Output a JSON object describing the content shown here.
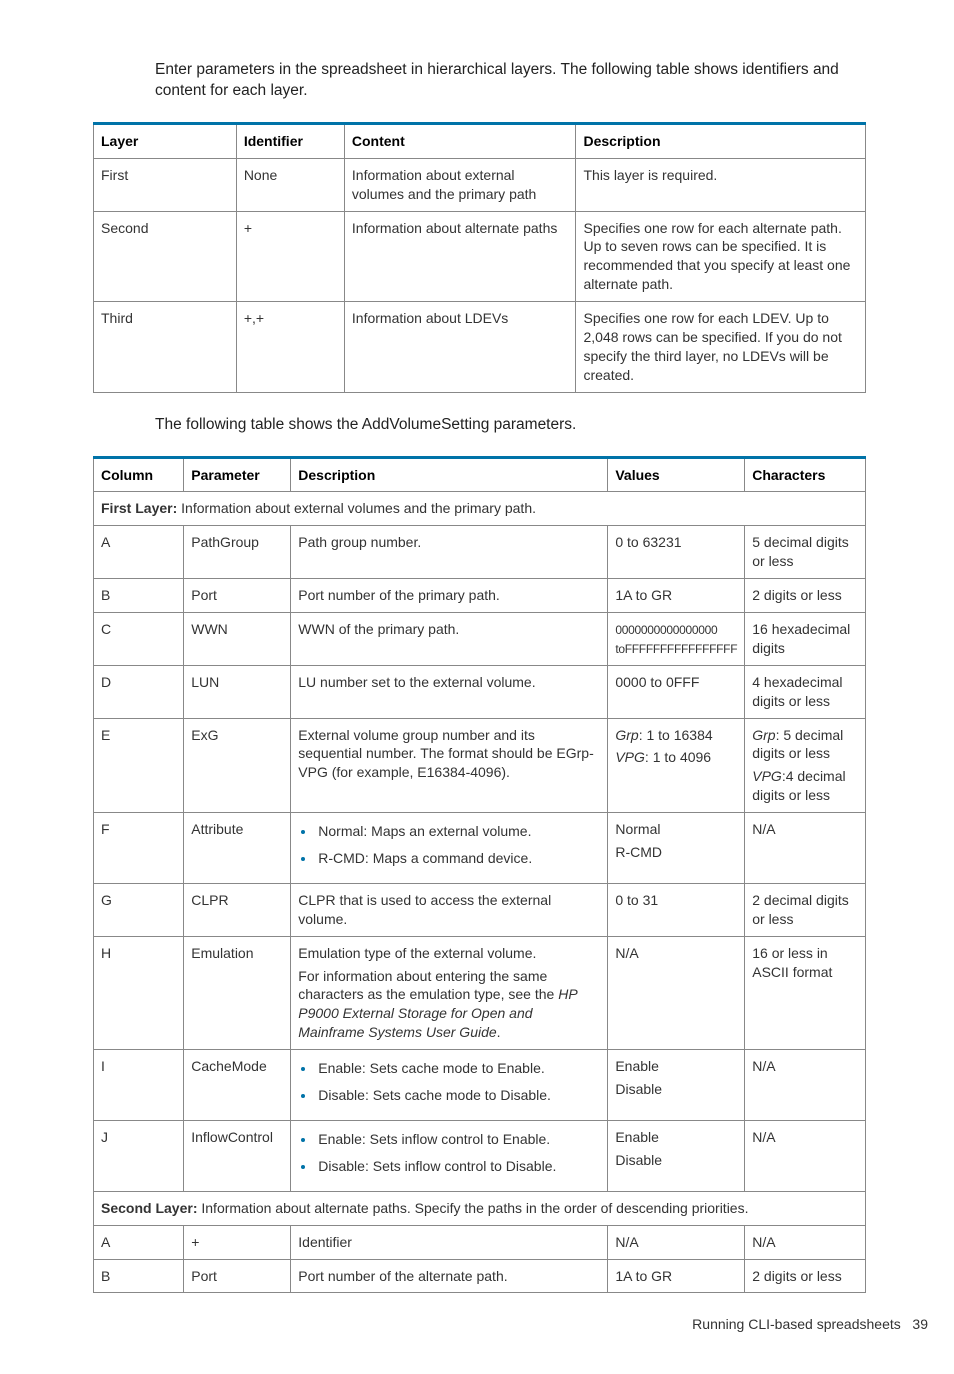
{
  "intro": "Enter parameters in the spreadsheet in hierarchical layers. The following table shows identifiers and content for each layer.",
  "table1": {
    "headers": [
      "Layer",
      "Identifier",
      "Content",
      "Description"
    ],
    "rows": [
      {
        "layer": "First",
        "identifier": "None",
        "content": "Information about external volumes and the primary path",
        "description": "This layer is required."
      },
      {
        "layer": "Second",
        "identifier": "+",
        "content": "Information about alternate paths",
        "description": "Specifies one row for each alternate path. Up to seven rows can be specified. It is recommended that you specify at least one alternate path."
      },
      {
        "layer": "Third",
        "identifier": "+,+",
        "content": "Information about LDEVs",
        "description": "Specifies one row for each LDEV. Up to 2,048 rows can be specified. If you do not specify the third layer, no LDEVs will be created."
      }
    ]
  },
  "mid_text": "The following table shows the AddVolumeSetting parameters.",
  "table2": {
    "headers": [
      "Column",
      "Parameter",
      "Description",
      "Values",
      "Characters"
    ],
    "section1_label": "First Layer:",
    "section1_text": " Information about external volumes and the primary path.",
    "section2_label": "Second Layer:",
    "section2_text": " Information about alternate paths. Specify the paths in the order of descending priorities.",
    "rows1": [
      {
        "col": "A",
        "param": "PathGroup",
        "desc_plain": "Path group number.",
        "values_plain": "0 to 63231",
        "chars_plain": "5 decimal digits or less"
      },
      {
        "col": "B",
        "param": "Port",
        "desc_plain": "Port number of the primary path.",
        "values_plain": "1A to GR",
        "chars_plain": "2 digits or less"
      },
      {
        "col": "C",
        "param": "WWN",
        "desc_plain": "WWN of the primary path.",
        "values_html": "<span class=\"small-val\">0000000000000000 toFFFFFFFFFFFFFFFF</span>",
        "chars_plain": "16 hexadecimal digits"
      },
      {
        "col": "D",
        "param": "LUN",
        "desc_plain": "LU number set to the external volume.",
        "values_plain": "0000 to 0FFF",
        "chars_plain": "4 hexadecimal digits or less"
      },
      {
        "col": "E",
        "param": "ExG",
        "desc_plain": "External volume group number and its sequential number. The format should be EGrp-VPG (for example, E16384-4096).",
        "values_html": "<div class=\"stack\"><div><span class=\"italic\">Grp</span>: 1 to 16384</div><div><span class=\"italic\">VPG</span>: 1 to 4096</div></div>",
        "chars_html": "<div class=\"stack\"><div><span class=\"italic\">Grp</span>: 5 decimal digits or less</div><div><span class=\"italic\">VPG</span>:4 decimal digits or less</div></div>"
      },
      {
        "col": "F",
        "param": "Attribute",
        "desc_list": [
          "Normal: Maps an external volume.",
          "R-CMD: Maps a command device."
        ],
        "values_html": "<div class=\"stack\"><div>Normal</div><div>R-CMD</div></div>",
        "chars_plain": "N/A"
      },
      {
        "col": "G",
        "param": "CLPR",
        "desc_plain": "CLPR that is used to access the external volume.",
        "values_plain": "0 to 31",
        "chars_plain": "2 decimal digits or less"
      },
      {
        "col": "H",
        "param": "Emulation",
        "desc_html": "<div class=\"stack\"><div>Emulation type of the external volume.</div><div>For information about entering the same characters as the emulation type, see the <span class=\"italic\">HP P9000 External Storage for Open and Mainframe Systems User Guide</span>.</div></div>",
        "values_plain": "N/A",
        "chars_plain": "16 or less in ASCII format"
      },
      {
        "col": "I",
        "param": "CacheMode",
        "desc_list": [
          "Enable: Sets cache mode to Enable.",
          "Disable: Sets cache mode to Disable."
        ],
        "values_html": "<div class=\"stack\"><div>Enable</div><div>Disable</div></div>",
        "chars_plain": "N/A"
      },
      {
        "col": "J",
        "param": "InflowControl",
        "desc_list": [
          "Enable: Sets inflow control to Enable.",
          "Disable: Sets inflow control to Disable."
        ],
        "values_html": "<div class=\"stack\"><div>Enable</div><div>Disable</div></div>",
        "chars_plain": "N/A"
      }
    ],
    "rows2": [
      {
        "col": "A",
        "param": "+",
        "desc_plain": "Identifier",
        "values_plain": "N/A",
        "chars_plain": "N/A"
      },
      {
        "col": "B",
        "param": "Port",
        "desc_plain": "Port number of the alternate path.",
        "values_plain": "1A to GR",
        "chars_plain": "2 digits or less"
      }
    ]
  },
  "footer_text": "Running CLI-based spreadsheets",
  "footer_page": "39",
  "col_widths_t1": [
    "18.5%",
    "14%",
    "30%",
    "37.5%"
  ],
  "col_widths_t2": [
    "12%",
    "14%",
    "44%",
    "14%",
    "16%"
  ]
}
